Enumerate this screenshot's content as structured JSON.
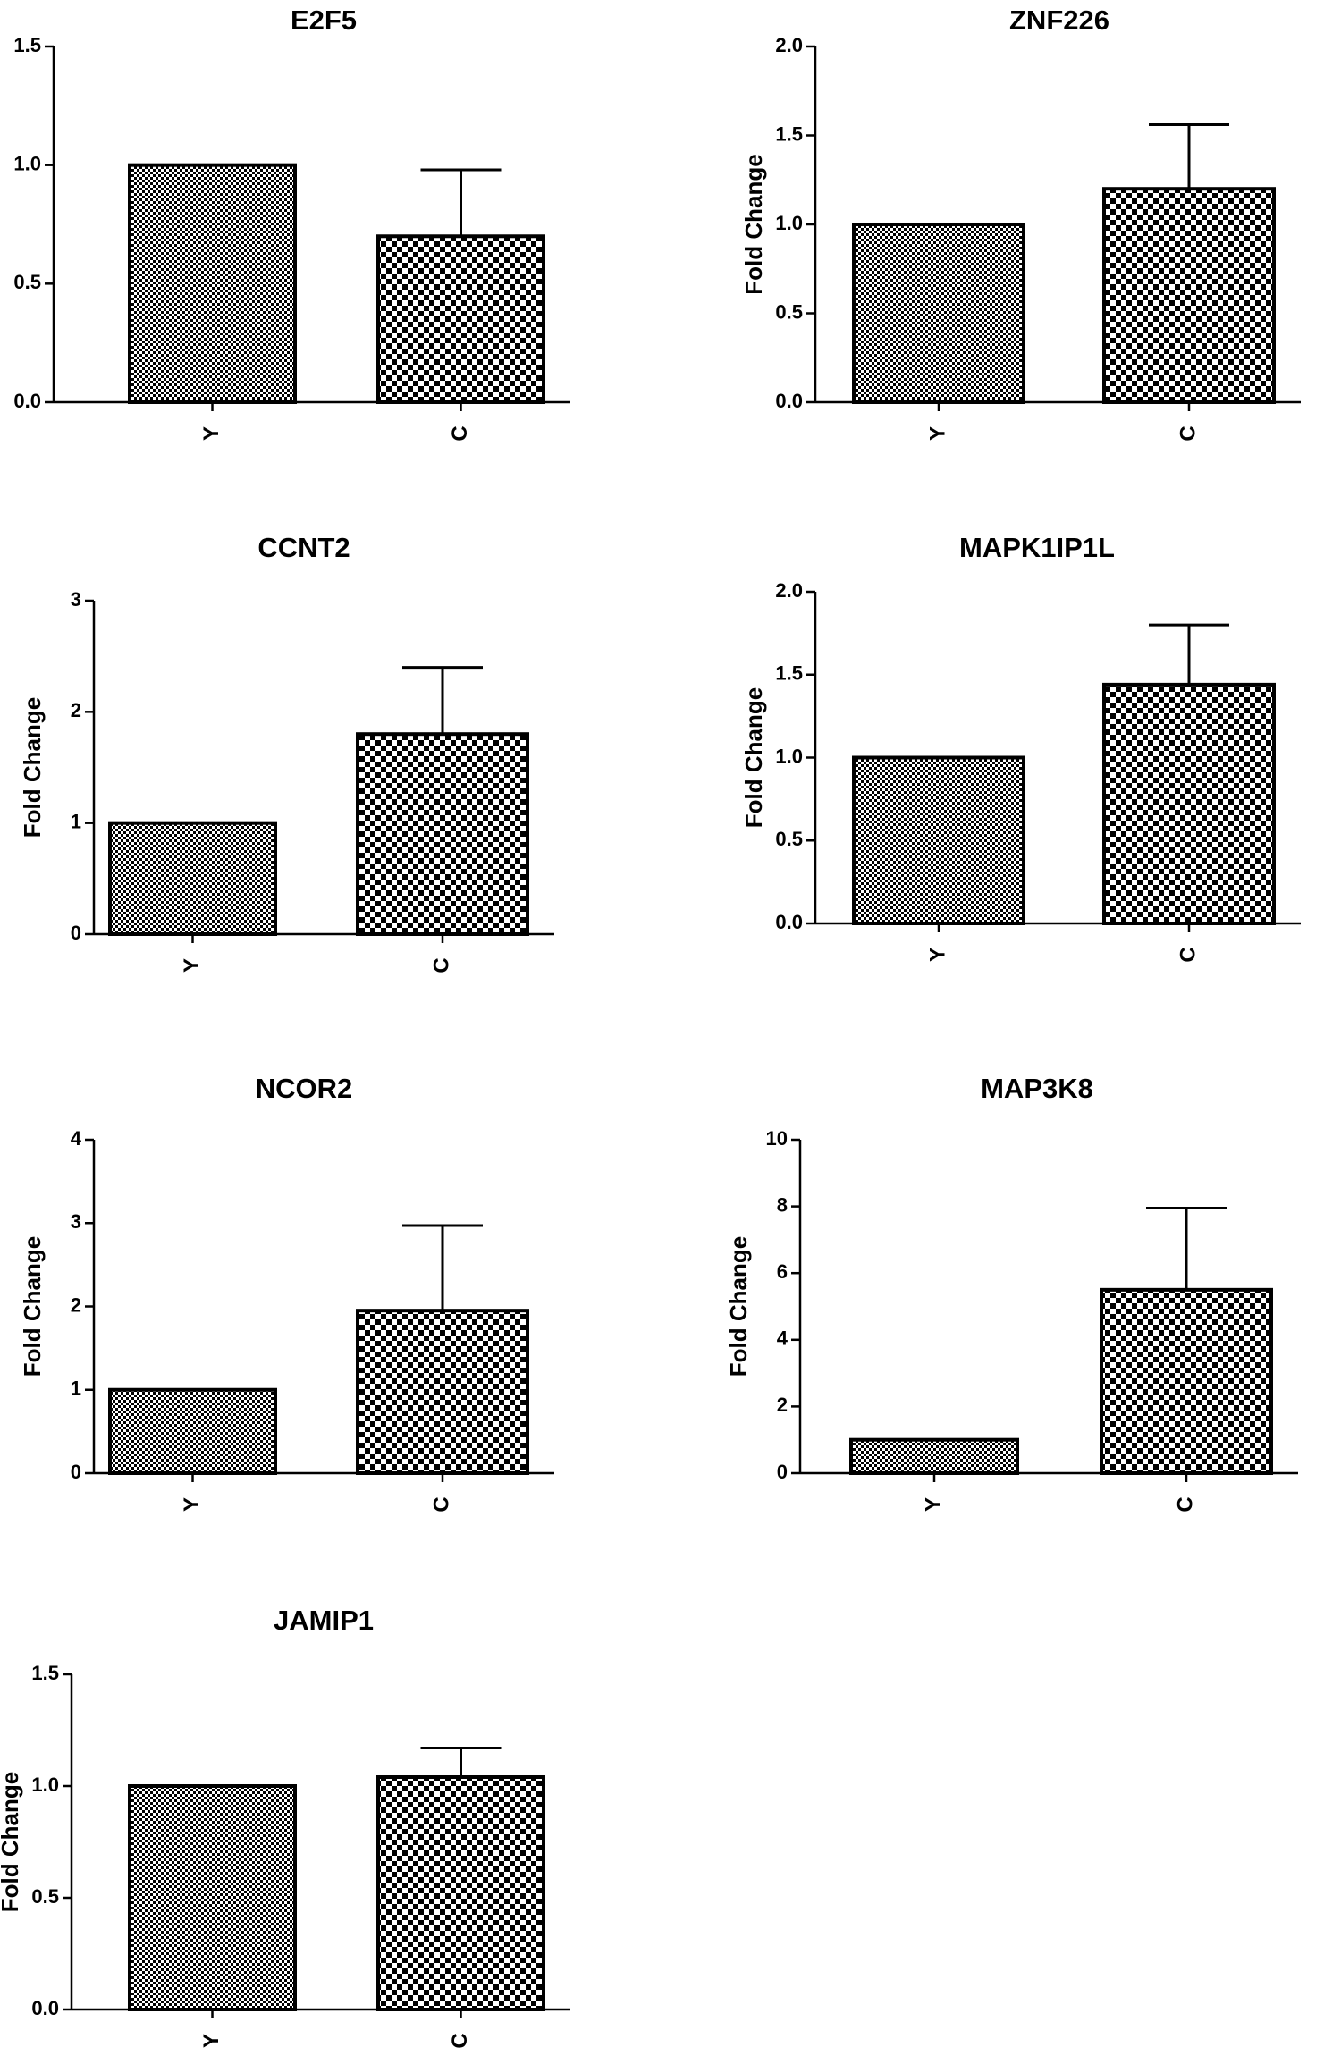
{
  "chart_data": [
    {
      "type": "bar",
      "title": "E2F5",
      "ylabel": "",
      "categories": [
        "Y",
        "C"
      ],
      "values": [
        1.0,
        0.7
      ],
      "error": [
        0,
        0.28
      ],
      "ylim": [
        0,
        1.5
      ],
      "yticks": [
        "0.0",
        "0.5",
        "1.0",
        "1.5"
      ],
      "ytick_values": [
        0,
        0.5,
        1.0,
        1.5
      ]
    },
    {
      "type": "bar",
      "title": "ZNF226",
      "ylabel": "Fold Change",
      "categories": [
        "Y",
        "C"
      ],
      "values": [
        1.0,
        1.2
      ],
      "error": [
        0,
        0.36
      ],
      "ylim": [
        0,
        2.0
      ],
      "yticks": [
        "0.0",
        "0.5",
        "1.0",
        "1.5",
        "2.0"
      ],
      "ytick_values": [
        0,
        0.5,
        1.0,
        1.5,
        2.0
      ]
    },
    {
      "type": "bar",
      "title": "CCNT2",
      "ylabel": "Fold Change",
      "categories": [
        "Y",
        "C"
      ],
      "values": [
        1.0,
        1.8
      ],
      "error": [
        0,
        0.6
      ],
      "ylim": [
        0,
        3
      ],
      "yticks": [
        "0",
        "1",
        "2",
        "3"
      ],
      "ytick_values": [
        0,
        1,
        2,
        3
      ]
    },
    {
      "type": "bar",
      "title": "MAPK1IP1L",
      "ylabel": "Fold Change",
      "categories": [
        "Y",
        "C"
      ],
      "values": [
        1.0,
        1.44
      ],
      "error": [
        0,
        0.36
      ],
      "ylim": [
        0,
        2.0
      ],
      "yticks": [
        "0.0",
        "0.5",
        "1.0",
        "1.5",
        "2.0"
      ],
      "ytick_values": [
        0,
        0.5,
        1.0,
        1.5,
        2.0
      ]
    },
    {
      "type": "bar",
      "title": "NCOR2",
      "ylabel": "Fold Change",
      "categories": [
        "Y",
        "C"
      ],
      "values": [
        1.0,
        1.95
      ],
      "error": [
        0,
        1.02
      ],
      "ylim": [
        0,
        4
      ],
      "yticks": [
        "0",
        "1",
        "2",
        "3",
        "4"
      ],
      "ytick_values": [
        0,
        1,
        2,
        3,
        4
      ]
    },
    {
      "type": "bar",
      "title": "MAP3K8",
      "ylabel": "Fold Change",
      "categories": [
        "Y",
        "C"
      ],
      "values": [
        1.0,
        5.5
      ],
      "error": [
        0,
        2.45
      ],
      "ylim": [
        0,
        10
      ],
      "yticks": [
        "0",
        "2",
        "4",
        "6",
        "8",
        "10"
      ],
      "ytick_values": [
        0,
        2,
        4,
        6,
        8,
        10
      ]
    },
    {
      "type": "bar",
      "title": "JAMIP1",
      "ylabel": "Fold Change",
      "categories": [
        "Y",
        "C"
      ],
      "values": [
        1.0,
        1.04
      ],
      "error": [
        0,
        0.13
      ],
      "ylim": [
        0,
        1.5
      ],
      "yticks": [
        "0.0",
        "0.5",
        "1.0",
        "1.5"
      ],
      "ytick_values": [
        0,
        0.5,
        1.0,
        1.5
      ]
    }
  ],
  "styles": {
    "bar_fill_y": "fine-checker",
    "bar_fill_c": "coarse-checker",
    "ink": "#000000",
    "background": "#ffffff"
  }
}
